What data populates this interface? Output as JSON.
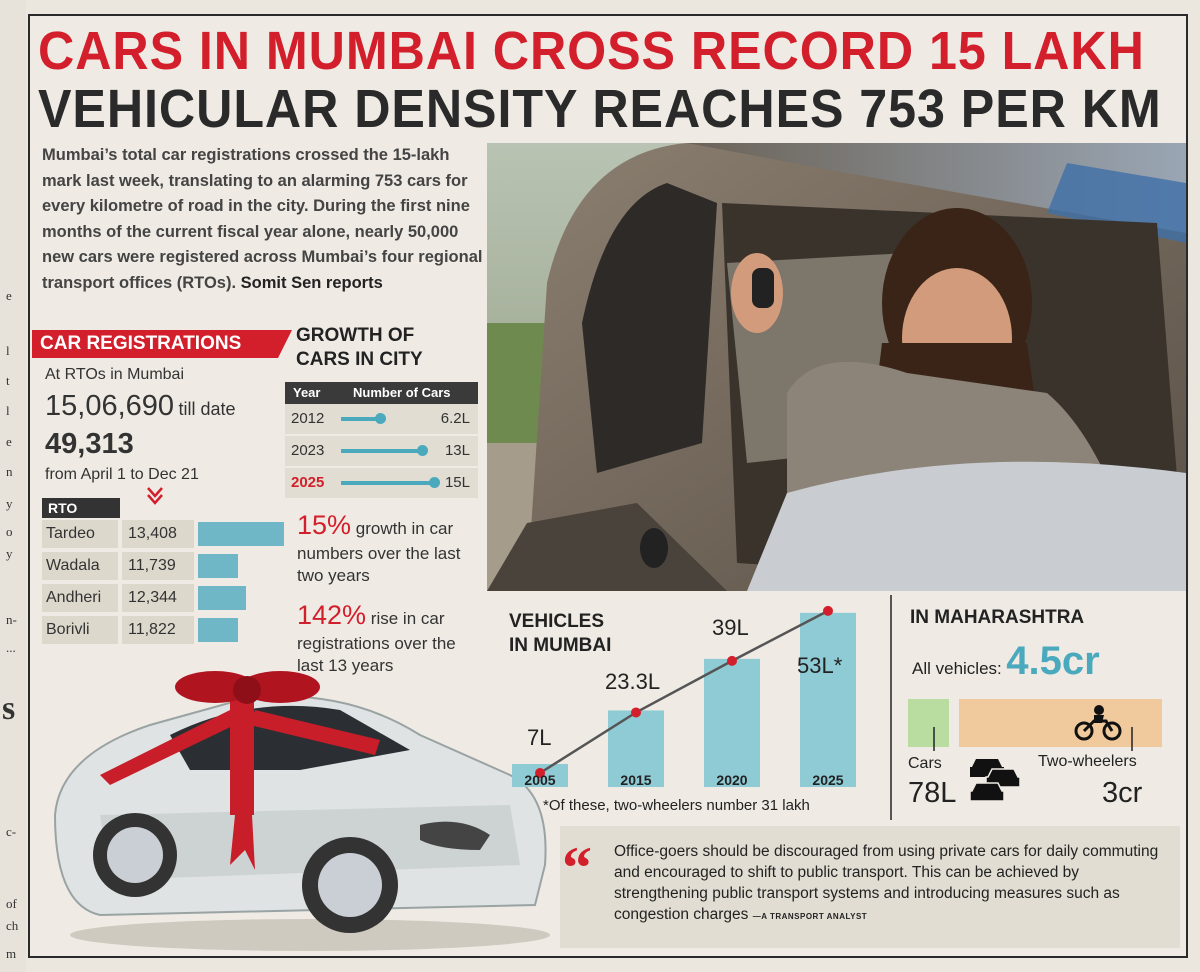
{
  "headline": {
    "line1": "CARS IN MUMBAI CROSS RECORD 15 LAKH",
    "line2": "VEHICULAR DENSITY REACHES 753 PER KM"
  },
  "intro": {
    "text": "Mumbai’s total car registrations crossed the 15-lakh mark last week, translating to an alarming 753 cars for every kilometre of road in the city. During the first nine months of the current fiscal year alone, nearly 50,000 new cars were registered across Mumbai’s four regional transport offices (RTOs).",
    "byline": "Somit Sen reports"
  },
  "car_registrations": {
    "title": "CAR REGISTRATIONS",
    "subtitle": "At RTOs in Mumbai",
    "total": "15,06,690",
    "total_suffix": "till date",
    "period_value": "49,313",
    "period_label": "from April 1 to Dec 21",
    "rto_header": "RTO",
    "rtos": [
      {
        "name": "Tardeo",
        "value": "13,408",
        "n": 13408
      },
      {
        "name": "Wadala",
        "value": "11,739",
        "n": 11739
      },
      {
        "name": "Andheri",
        "value": "12,344",
        "n": 12344
      },
      {
        "name": "Borivli",
        "value": "11,822",
        "n": 11822
      }
    ]
  },
  "growth": {
    "title_line1": "GROWTH OF",
    "title_line2": "CARS IN CITY",
    "col_year": "Year",
    "col_cars": "Number of Cars",
    "rows": [
      {
        "year": "2012",
        "value": "6.2L",
        "n": 6.2
      },
      {
        "year": "2023",
        "value": "13L",
        "n": 13
      },
      {
        "year": "2025",
        "value": "15L",
        "n": 15
      }
    ],
    "stat1_big": "15%",
    "stat1_text": "growth in car numbers over the last two years",
    "stat2_big": "142%",
    "stat2_text": "rise in car registrations over the last 13 years"
  },
  "vehicles_mumbai": {
    "title_line1": "VEHICLES",
    "title_line2": "IN MUMBAI",
    "footnote": "*Of these, two-wheelers number 31 lakh"
  },
  "chart_data": {
    "type": "bar",
    "title": "VEHICLES IN MUMBAI",
    "categories": [
      "2005",
      "2015",
      "2020",
      "2025"
    ],
    "values": [
      7,
      23.3,
      39,
      53
    ],
    "value_labels": [
      "7L",
      "23.3L",
      "39L",
      "53L*"
    ],
    "ylim": [
      0,
      56
    ]
  },
  "maharashtra": {
    "title": "IN MAHARASHTRA",
    "all_label": "All vehicles:",
    "all_value": "4.5cr",
    "cars_label": "Cars",
    "cars_value": "78L",
    "tw_label": "Two-wheelers",
    "tw_value": "3cr",
    "cars_share": 0.17
  },
  "quote": {
    "text": "Office-goers should be discouraged from using private cars for daily commuting and encouraged to shift to public transport. This can be achieved by strengthening public transport systems and introducing measures such as congestion charges",
    "attribution": "—A TRANSPORT ANALYST"
  },
  "margin_text": [
    "e",
    "l",
    "t",
    "l",
    "e",
    "n",
    "y",
    "o",
    "y",
    "n-",
    "...",
    "s",
    "c-",
    "of",
    "ch",
    "m"
  ],
  "colors": {
    "accent_red": "#d31f2b",
    "bar_teal": "#6fb6c6",
    "ink": "#2a2a2a"
  }
}
